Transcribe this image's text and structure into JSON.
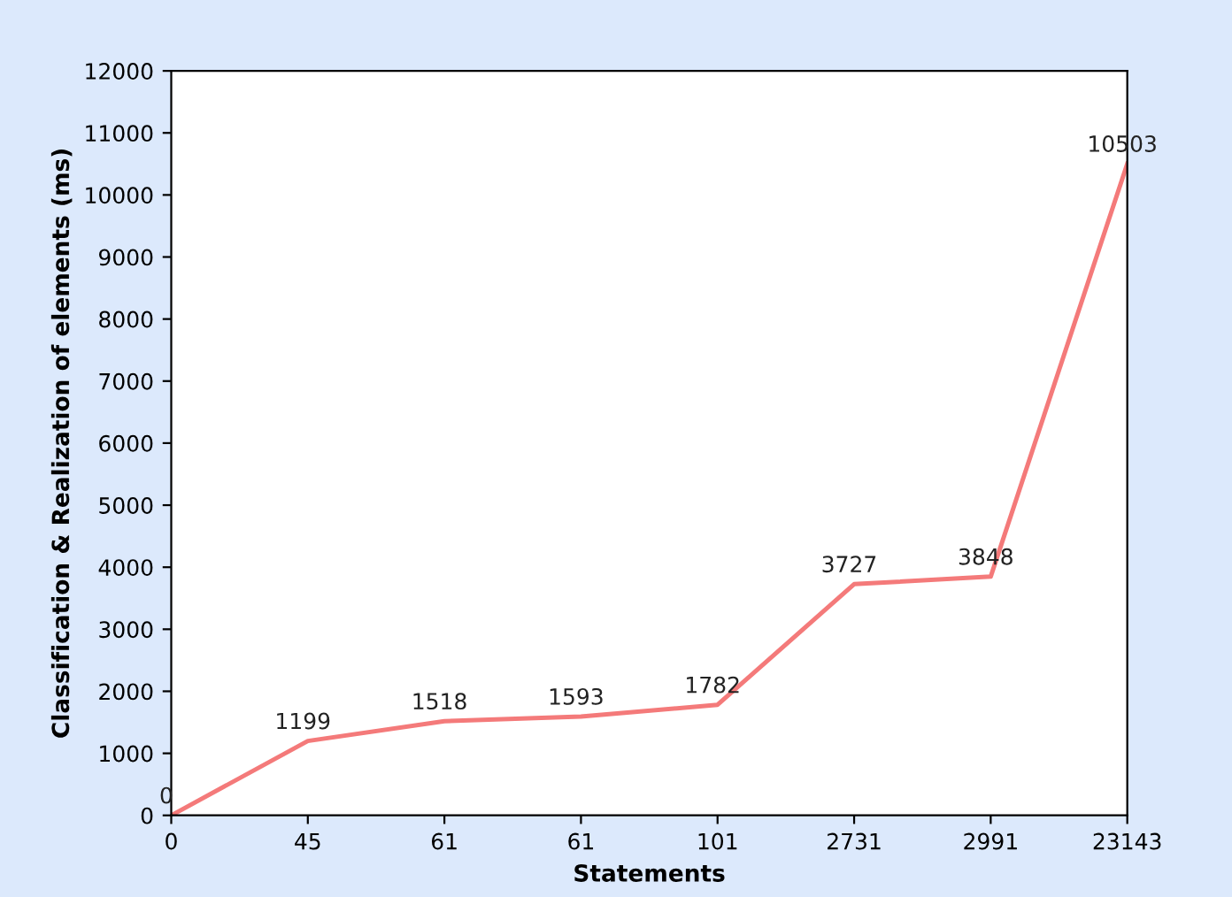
{
  "chart_data": {
    "type": "line",
    "xlabel": "Statements",
    "ylabel": "Classification & Realization of elements (ms)",
    "categories": [
      "0",
      "45",
      "61",
      "61",
      "101",
      "2731",
      "2991",
      "23143"
    ],
    "series": [
      {
        "color": "#f47a7a",
        "values": [
          0,
          1199,
          1518,
          1593,
          1782,
          3727,
          3848,
          10503
        ]
      }
    ],
    "ylim": [
      0,
      12000
    ],
    "yticks": [
      0,
      1000,
      2000,
      3000,
      4000,
      5000,
      6000,
      7000,
      8000,
      9000,
      10000,
      11000,
      12000
    ],
    "grid": false,
    "legend": false,
    "marker": "none",
    "line_style": "solid",
    "data_labels": true
  }
}
